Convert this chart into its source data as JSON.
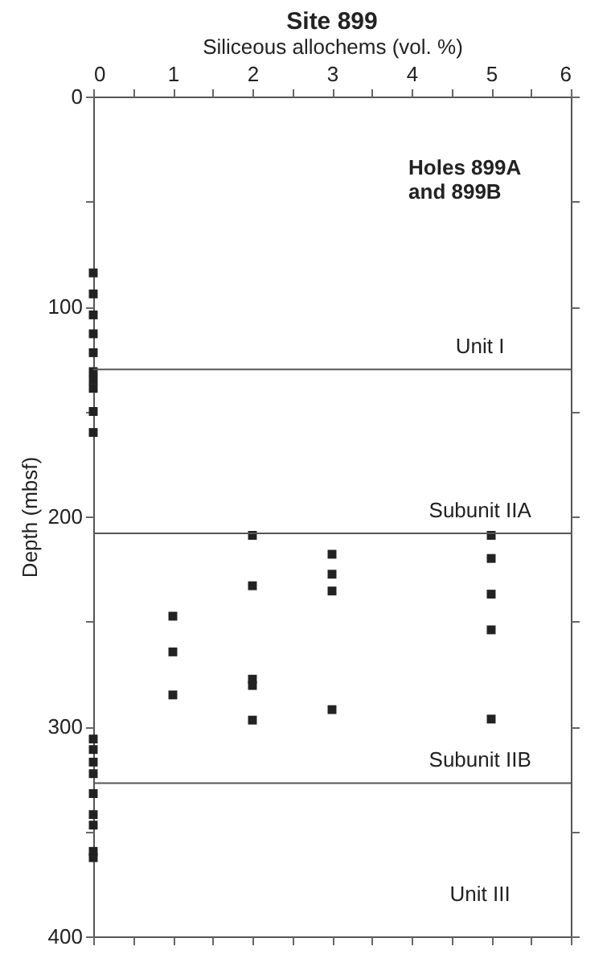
{
  "chart_data": {
    "type": "scatter",
    "title": "Site 899",
    "xlabel": "Siliceous allochems (vol. %)",
    "ylabel": "Depth (mbsf)",
    "series": [
      {
        "color": "#222222",
        "x": [
          0,
          0,
          0,
          0,
          0,
          0,
          0,
          0,
          0,
          0,
          1,
          1,
          1,
          2,
          2,
          2,
          2,
          2,
          3,
          3,
          3,
          3,
          5,
          5,
          5,
          5,
          5,
          0,
          0,
          0,
          0,
          0,
          0,
          0,
          0,
          0
        ],
        "values": [
          84,
          94,
          104,
          113,
          122,
          131,
          135,
          139,
          150,
          160,
          247.5,
          264.5,
          285,
          209,
          233,
          277.5,
          280.5,
          297,
          218,
          227.5,
          235.5,
          292,
          209,
          220,
          237,
          254,
          296.5,
          306,
          311,
          317,
          322.5,
          332,
          342,
          347,
          359.5,
          362.5
        ]
      }
    ],
    "marker": "square",
    "grid": false,
    "xlim": [
      0,
      6
    ],
    "xticks": [
      0,
      {
        "value": 0.5,
        "label": null
      },
      1,
      {
        "value": 1.5,
        "label": null
      },
      2,
      {
        "value": 2.5,
        "label": null
      },
      3,
      {
        "value": 3.5,
        "label": null
      },
      4,
      {
        "value": 4.5,
        "label": null
      },
      5,
      {
        "value": 5.5,
        "label": null
      },
      6
    ],
    "ylim": [
      400,
      0
    ],
    "yticks": [
      0,
      {
        "value": 50,
        "label": null
      },
      100,
      {
        "value": 150,
        "label": null
      },
      200,
      {
        "value": 250,
        "label": null
      },
      300,
      {
        "value": 350,
        "label": null
      },
      400
    ],
    "ref_lines": [
      {
        "axis": "y",
        "value": 130,
        "label": "Unit I",
        "color": "#555555"
      },
      {
        "axis": "y",
        "value": 208,
        "label": "Subunit IIA",
        "color": "#555555"
      },
      {
        "axis": "y",
        "value": 327,
        "label": "Subunit IIB",
        "color": "#555555"
      }
    ],
    "annotations": [
      "Holes 899A and 899B",
      "Unit III"
    ]
  }
}
